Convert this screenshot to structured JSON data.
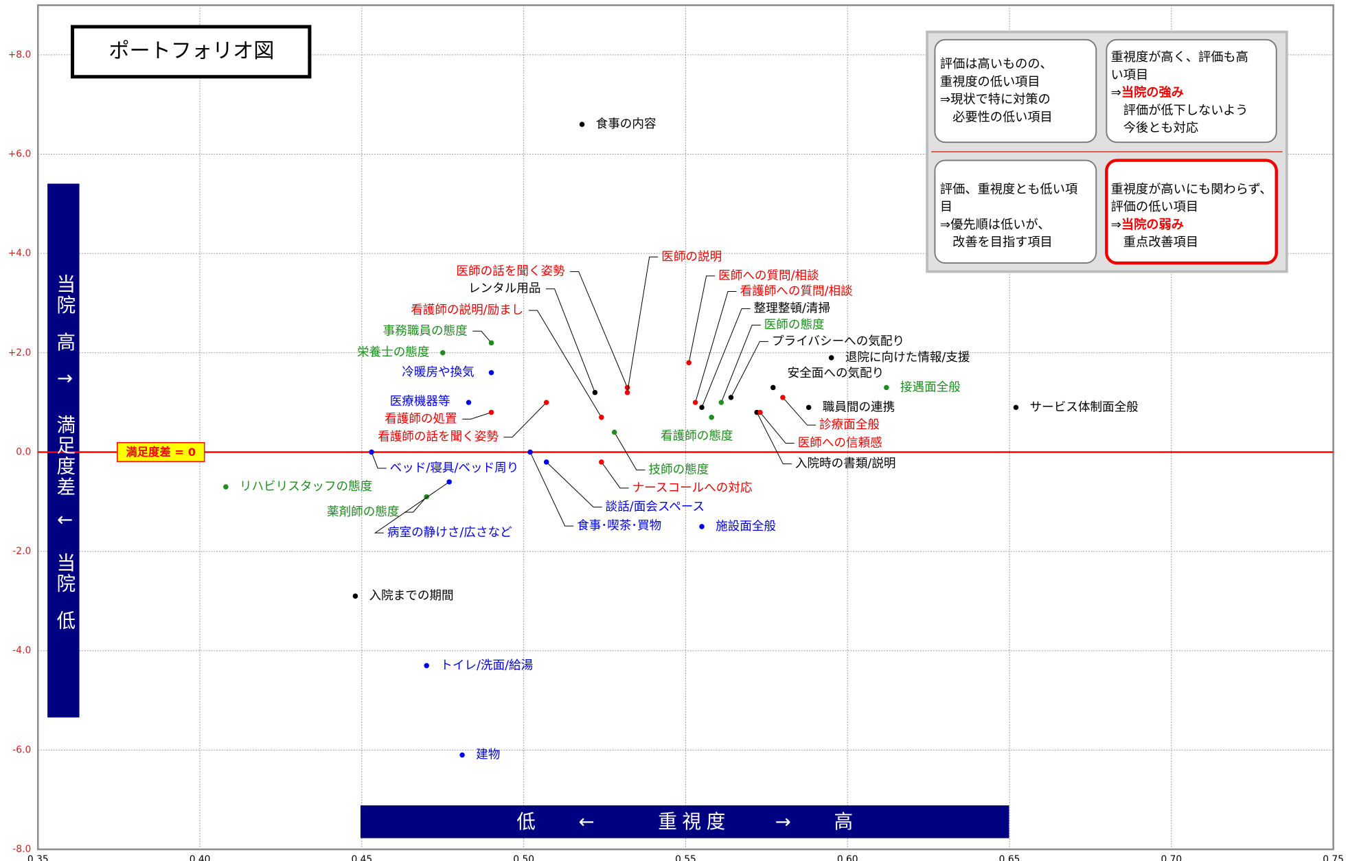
{
  "chart_data": {
    "type": "scatter",
    "title": "ポートフォリオ図",
    "y_banner": [
      "当院",
      "高",
      "↑",
      "満足度差",
      "↓",
      "当院",
      "低"
    ],
    "x_banner": [
      "低",
      "←",
      "重視度",
      "→",
      "高"
    ],
    "reference_line": {
      "value": 0,
      "label": "満足度差 = 0",
      "color": "#ff0000"
    },
    "xlim": [
      0.35,
      0.75
    ],
    "ylim": [
      -8,
      9
    ],
    "xticks": [
      0.35,
      {
        "value": 0.4,
        "label": "0.40"
      },
      0.45,
      {
        "value": 0.5,
        "label": "0.50"
      },
      0.55,
      {
        "value": 0.6,
        "label": "0.60"
      },
      0.65,
      {
        "value": 0.7,
        "label": "0.70"
      },
      0.75
    ],
    "yticks": [
      {
        "value": -8,
        "label": "-8.0"
      },
      {
        "value": -6,
        "label": "-6.0"
      },
      {
        "value": -4,
        "label": "-4.0"
      },
      {
        "value": -2,
        "label": "-2.0"
      },
      {
        "value": 0,
        "label": "0.0"
      },
      {
        "value": 2,
        "label": "+2.0"
      },
      {
        "value": 4,
        "label": "+4.0"
      },
      {
        "value": 6,
        "label": "+6.0"
      },
      {
        "value": 8,
        "label": "+8.0"
      }
    ],
    "grid": true,
    "series": [
      {
        "color": "#000000",
        "labels": [
          "食事の内容",
          "レンタル用品",
          "整理整頓/清掃",
          "プライバシーへの気配り",
          "退院に向けた情報/支援",
          "安全面への気配り",
          "職員間の連携",
          "サービス体制面全般",
          "入院時の書類/説明",
          "入院までの期間"
        ],
        "x": [
          0.518,
          0.522,
          0.555,
          0.564,
          0.595,
          0.577,
          0.588,
          0.652,
          0.572,
          0.448
        ],
        "values": [
          6.6,
          1.2,
          0.9,
          1.1,
          1.9,
          1.3,
          0.9,
          0.9,
          0.8,
          -2.9
        ]
      },
      {
        "color": "#ee0000",
        "labels": [
          "医師の話を聞く姿勢",
          "医師の説明",
          "医師への質問/相談",
          "看護師への質問/相談",
          "看護師の説明/励まし",
          "看護師の処置",
          "看護師の話を聞く姿勢",
          "ナースコールへの対応",
          "診療面全般",
          "医師への信頼感"
        ],
        "x": [
          0.532,
          0.532,
          0.551,
          0.553,
          0.524,
          0.49,
          0.507,
          0.524,
          0.58,
          0.573
        ],
        "values": [
          1.3,
          1.2,
          1.8,
          1.0,
          0.7,
          0.8,
          1.0,
          -0.2,
          1.1,
          0.8
        ]
      },
      {
        "color": "#1e8c1e",
        "labels": [
          "事務職員の態度",
          "栄養士の態度",
          "医師の態度",
          "接遇面全般",
          "看護師の態度",
          "技師の態度",
          "リハビリスタッフの態度",
          "薬剤師の態度"
        ],
        "x": [
          0.49,
          0.475,
          0.561,
          0.612,
          0.558,
          0.528,
          0.408,
          0.47
        ],
        "values": [
          2.2,
          2.0,
          1.0,
          1.3,
          0.7,
          0.4,
          -0.7,
          -0.9
        ]
      },
      {
        "color": "#0000e6",
        "labels": [
          "冷暖房や換気",
          "医療機器等",
          "ベッド/寝具/ベッド周り",
          "病室の静けさ/広さなど",
          "談話/面会スペース",
          "食事･喫茶･買物",
          "施設面全般",
          "トイレ/洗面/給湯",
          "建物"
        ],
        "x": [
          0.49,
          0.483,
          0.453,
          0.477,
          0.507,
          0.502,
          0.555,
          0.47,
          0.481
        ],
        "values": [
          1.6,
          1.0,
          0.0,
          -0.6,
          -0.2,
          0.0,
          -1.5,
          -4.3,
          -6.1
        ]
      }
    ],
    "quadrants": [
      {
        "lines": [
          "評価は高いものの、",
          "重視度の低い項目",
          "⇒現状で特に対策の",
          "　必要性の低い項目"
        ]
      },
      {
        "lines": [
          "重視度が高く、評価も高",
          "い項目",
          [
            "⇒",
            "当院の強み"
          ],
          "　評価が低下しないよう",
          "　今後とも対応"
        ]
      },
      {
        "lines": [
          "評価、重視度とも低い項",
          "目",
          "⇒優先順は低いが、",
          "　改善を目指す項目"
        ]
      },
      {
        "lines": [
          "重視度が高いにも関わらず、",
          "評価の低い項目",
          [
            "⇒",
            "当院の弱み"
          ],
          "　重点改善項目"
        ]
      }
    ]
  }
}
